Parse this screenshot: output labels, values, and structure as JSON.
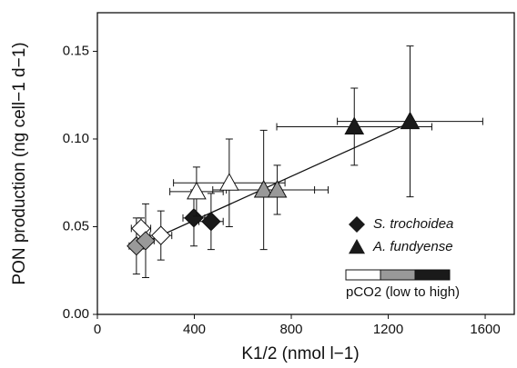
{
  "chart_data": {
    "type": "scatter",
    "x_label": "K1/2 (nmol l−1)",
    "y_label": "PON production (ng cell−1 d−1)",
    "xlim": [
      0,
      1720
    ],
    "xticks": [
      0,
      400,
      800,
      1200,
      1600
    ],
    "ylim": [
      0,
      0.172
    ],
    "yticks": [
      {
        "value": 0,
        "label": "0.00"
      },
      {
        "value": 0.05,
        "label": "0.05"
      },
      {
        "value": 0.1,
        "label": "0.10"
      },
      {
        "value": 0.15,
        "label": "0.15"
      }
    ],
    "series": [
      {
        "name": "S. trochoidea",
        "marker": "diamond",
        "color": "#1a1a1a",
        "x": [
          180,
          262,
          161,
          199,
          398,
          469
        ],
        "values": [
          0.049,
          0.045,
          0.039,
          0.042,
          0.055,
          0.053
        ],
        "xerr": [
          40,
          45,
          30,
          35,
          45,
          50
        ],
        "yerr": [
          0.006,
          0.014,
          0.016,
          0.021,
          0.016,
          0.016
        ],
        "colors": [
          "#ffffff",
          "#ffffff",
          "#999999",
          "#999999",
          "#1a1a1a",
          "#1a1a1a"
        ]
      },
      {
        "name": "A. fundyense",
        "marker": "triangle",
        "color": "#1a1a1a",
        "x": [
          409,
          544,
          686,
          742,
          1060,
          1290
        ],
        "values": [
          0.07,
          0.075,
          0.071,
          0.071,
          0.107,
          0.11
        ],
        "xerr": [
          110,
          230,
          210,
          210,
          320,
          300
        ],
        "yerr": [
          0.014,
          0.025,
          0.034,
          0.014,
          0.022,
          0.043
        ],
        "colors": [
          "#ffffff",
          "#ffffff",
          "#999999",
          "#999999",
          "#1a1a1a",
          "#1a1a1a"
        ]
      }
    ],
    "fit": {
      "x": [
        150,
        1300
      ],
      "y": [
        0.038,
        0.11
      ]
    },
    "pco2_legend": {
      "label": "pCO2 (low to high)",
      "colors": [
        "#ffffff",
        "#999999",
        "#1a1a1a"
      ]
    }
  }
}
